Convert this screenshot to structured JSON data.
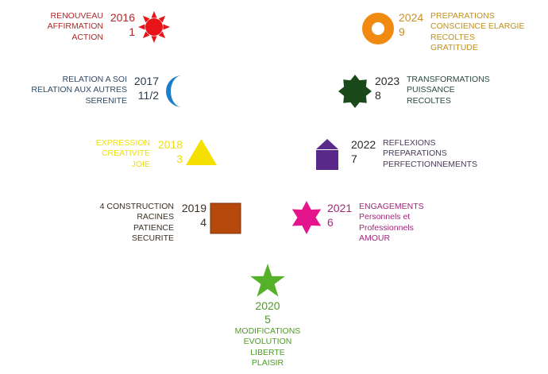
{
  "items": [
    {
      "year": "2016",
      "number": "1",
      "lines": [
        "RENOUVEAU",
        "AFFIRMATION",
        "ACTION"
      ],
      "symbol": "sun-icon",
      "text_color": "#b02a2a",
      "year_color": "#b02a2a",
      "shape_color": "#e8141a"
    },
    {
      "year": "2017",
      "number": "11/2",
      "lines": [
        "RELATION A SOI",
        "RELATION AUX AUTRES",
        "SERENITE"
      ],
      "symbol": "crescent-moon-icon",
      "text_color": "#2e4a66",
      "year_color": "#2a3a4a",
      "shape_color": "#1a7fc8"
    },
    {
      "year": "2018",
      "number": "3",
      "lines": [
        "EXPRESSION",
        "CREATIVITE",
        "JOIE"
      ],
      "symbol": "triangle-icon",
      "text_color": "#eedd10",
      "year_color": "#eedd10",
      "shape_color": "#f5e000"
    },
    {
      "year": "2019",
      "number": "4",
      "lines": [
        "4  CONSTRUCTION",
        "RACINES",
        "PATIENCE",
        "SECURITE"
      ],
      "symbol": "square-icon",
      "text_color": "#3a3026",
      "year_color": "#3a3026",
      "shape_color": "#b5490c"
    },
    {
      "year": "2020",
      "number": "5",
      "lines": [
        "MODIFICATIONS",
        "EVOLUTION",
        "LIBERTE",
        "PLAISIR"
      ],
      "symbol": "five-point-star-icon",
      "text_color": "#4f9a2a",
      "year_color": "#4f9a2a",
      "shape_color": "#55b02a"
    },
    {
      "year": "2021",
      "number": "6",
      "lines": [
        "ENGAGEMENTS",
        "Personnels et",
        "Professionnels",
        "AMOUR"
      ],
      "symbol": "six-point-star-icon",
      "text_color": "#9c2878",
      "year_color": "#a0287a",
      "shape_color": "#e3148c"
    },
    {
      "year": "2022",
      "number": "7",
      "lines": [
        "REFLEXIONS",
        "PREPARATIONS",
        "PERFECTIONNEMENTS"
      ],
      "symbol": "house-icon",
      "text_color": "#4a3a5a",
      "year_color": "#2a2a2a",
      "shape_color": "#5a2a8a"
    },
    {
      "year": "2023",
      "number": "8",
      "lines": [
        "TRANSFORMATIONS",
        "PUISSANCE",
        "RECOLTES"
      ],
      "symbol": "eight-point-star-icon",
      "text_color": "#2a4a3a",
      "year_color": "#2a2a2a",
      "shape_color": "#1a4a1a"
    },
    {
      "year": "2024",
      "number": "9",
      "lines": [
        "PREPARATIONS",
        "CONSCIENCE ELARGIE",
        "RECOLTES",
        "GRATITUDE"
      ],
      "symbol": "ring-icon",
      "text_color": "#c09020",
      "year_color": "#c89020",
      "shape_color": "#f08a10"
    }
  ]
}
